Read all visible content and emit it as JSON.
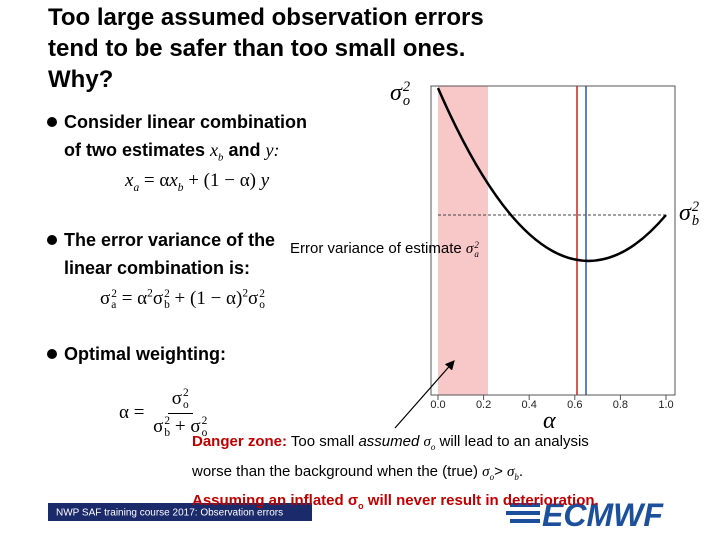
{
  "title": [
    "Too large assumed observation errors",
    "tend to be safer than too small ones.",
    "Why?"
  ],
  "bullets": [
    {
      "lines": [
        [
          {
            "text": "Consider linear combination"
          }
        ],
        [
          {
            "text": "of two estimates "
          },
          {
            "text": "x",
            "sub": "b",
            "emphasis": "symbol"
          },
          {
            "text": " and "
          },
          {
            "text": "y:",
            "emphasis": "symbol"
          }
        ]
      ]
    },
    {
      "lines": [
        [
          {
            "text": "The error variance of the"
          }
        ],
        [
          {
            "text": "linear combination is:"
          }
        ]
      ]
    },
    {
      "lines": [
        [
          {
            "text": "Optimal weighting:"
          }
        ]
      ]
    }
  ],
  "equations": {
    "combination": [
      {
        "text": "x",
        "sub": "a",
        "emphasis": "italic"
      },
      {
        "text": " = α"
      },
      {
        "text": "x",
        "sub": "b",
        "emphasis": "italic"
      },
      {
        "text": " + (1 − α) "
      },
      {
        "text": "y",
        "emphasis": "italic"
      }
    ],
    "variance": [
      {
        "text": "σ",
        "sub": "a",
        "sup": "2"
      },
      {
        "text": " = α",
        "sup": "2"
      },
      {
        "text": "σ",
        "sub": "b",
        "sup": "2"
      },
      {
        "text": " + (1 − α)",
        "sup": "2"
      },
      {
        "text": "σ",
        "sub": "o",
        "sup": "2"
      }
    ],
    "weight": {
      "lhs": [
        {
          "text": "α = "
        }
      ],
      "numerator": [
        {
          "text": "σ",
          "sub": "o",
          "sup": "2"
        }
      ],
      "denominator": [
        {
          "text": "σ",
          "sub": "b",
          "sup": "2"
        },
        {
          "text": " + "
        },
        {
          "text": "σ",
          "sub": "o",
          "sup": "2"
        }
      ]
    }
  },
  "figure": {
    "ylabel": [
      {
        "text": "σ",
        "sub": "o",
        "sup": "2",
        "emphasis": "symbol"
      }
    ],
    "rightlabel": [
      {
        "text": "σ",
        "sub": "b",
        "sup": "2",
        "emphasis": "symbol"
      }
    ],
    "xlabel": "α",
    "annotation": [
      {
        "text": "Error variance of estimate "
      },
      {
        "text": "σ",
        "sub": "a",
        "sup": "2",
        "emphasis": "symbol"
      }
    ],
    "xticks": [
      {
        "value": 0,
        "label": "0.0"
      },
      {
        "value": 0.2,
        "label": "0.2"
      },
      {
        "value": 0.4,
        "label": "0.4"
      },
      {
        "value": 0.6,
        "label": "0.6"
      },
      {
        "value": 0.8,
        "label": "0.8"
      },
      {
        "value": 1,
        "label": "1.0"
      }
    ]
  },
  "danger": [
    [
      {
        "text": "Danger zone:",
        "emphasis": "danger"
      },
      {
        "text": " Too small "
      },
      {
        "text": "assumed",
        "emphasis": "italic"
      },
      {
        "text": " "
      },
      {
        "text": "σ",
        "sub": "o",
        "emphasis": "symbol"
      },
      {
        "text": " will lead to an analysis"
      }
    ],
    [
      {
        "text": "worse than the background when the (true) "
      },
      {
        "text": "σ",
        "sub": "o",
        "emphasis": "symbol"
      },
      {
        "text": "> "
      },
      {
        "text": "σ",
        "sub": "b",
        "emphasis": "symbol"
      },
      {
        "text": "."
      }
    ],
    [
      {
        "text": "Assuming an inflated ",
        "emphasis": "danger"
      },
      {
        "text": "σ",
        "sub": "o",
        "emphasis": "danger"
      },
      {
        "text": " will never result in deterioration.",
        "emphasis": "danger"
      }
    ]
  ],
  "footer": {
    "course": "NWP SAF training course 2017: Observation errors",
    "logo": "ECMWF"
  }
}
